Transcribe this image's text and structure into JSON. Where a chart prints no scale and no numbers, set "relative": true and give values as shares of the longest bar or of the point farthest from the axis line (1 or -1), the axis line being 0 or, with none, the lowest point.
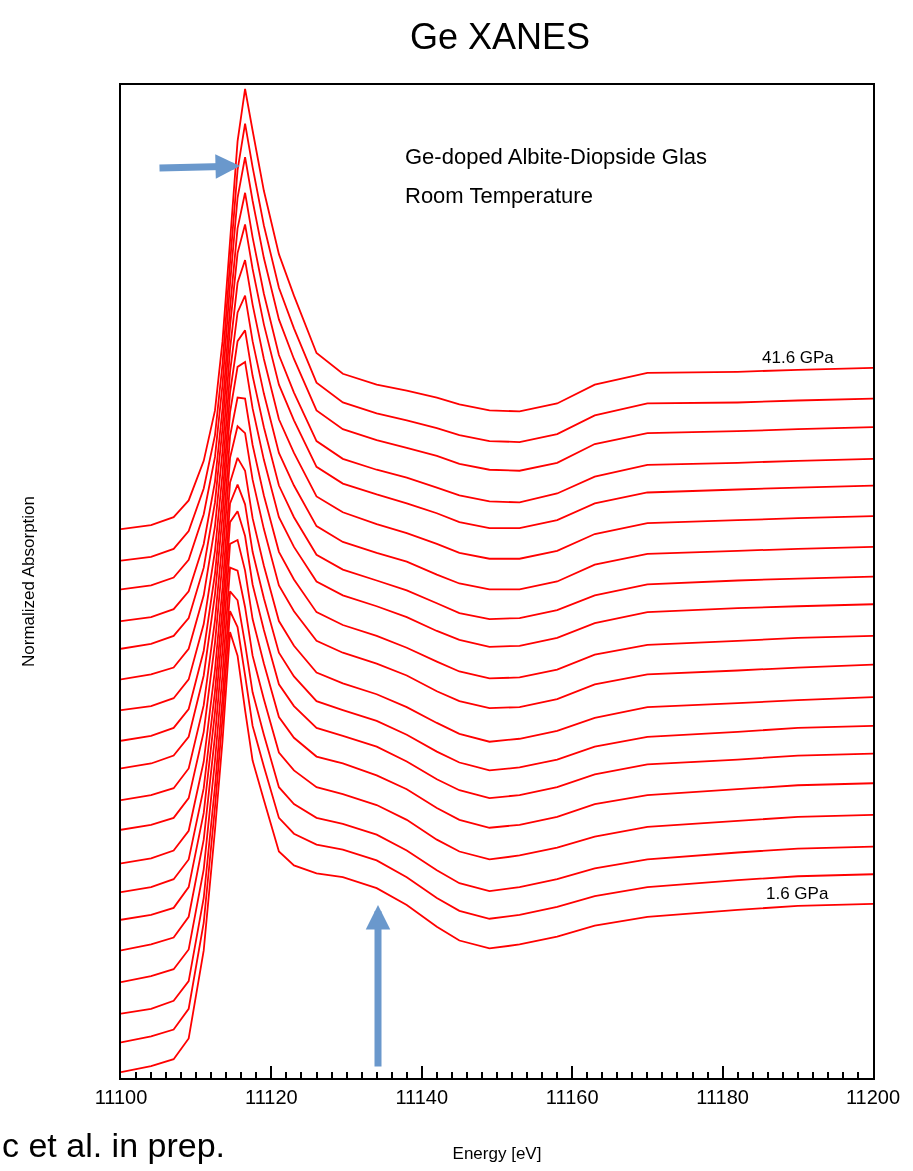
{
  "chart_data": {
    "type": "line",
    "title": "Ge XANES",
    "xlabel": "Energy [eV]",
    "ylabel": "Normalized Absorption",
    "relative": true,
    "x": [
      11100,
      11104,
      11107,
      11109,
      11111,
      11112.5,
      11113.5,
      11114.5,
      11115.5,
      11116.5,
      11117.5,
      11119,
      11121,
      11123,
      11126,
      11129.5,
      11134,
      11138,
      11142,
      11145,
      11149,
      11153,
      11158,
      11163,
      11170,
      11182,
      11190,
      11200
    ],
    "xlim": [
      11100,
      11200
    ],
    "xticks": [
      11100,
      11120,
      11140,
      11160,
      11180,
      11200
    ],
    "legend": false,
    "marker": "none",
    "line_style": "solid",
    "annotations": [
      "Ge-doped Albite-Diopside Glas",
      "Room Temperature",
      "c et al. in prep."
    ],
    "series": [
      {
        "name": "41.6 GPa",
        "color": "#ff0000",
        "values": [
          0.555,
          0.559,
          0.567,
          0.584,
          0.624,
          0.675,
          0.745,
          0.846,
          0.947,
          1.0,
          0.958,
          0.897,
          0.833,
          0.791,
          0.733,
          0.712,
          0.701,
          0.695,
          0.688,
          0.681,
          0.675,
          0.674,
          0.682,
          0.701,
          0.713,
          0.714,
          0.716,
          0.718
        ]
      },
      {
        "color": "#ff0000",
        "values": [
          0.523,
          0.527,
          0.535,
          0.553,
          0.596,
          0.65,
          0.722,
          0.824,
          0.918,
          0.965,
          0.921,
          0.862,
          0.799,
          0.758,
          0.703,
          0.683,
          0.672,
          0.665,
          0.657,
          0.65,
          0.644,
          0.643,
          0.651,
          0.67,
          0.682,
          0.683,
          0.685,
          0.687
        ]
      },
      {
        "color": "#ff0000",
        "values": [
          0.494,
          0.498,
          0.506,
          0.524,
          0.57,
          0.628,
          0.701,
          0.803,
          0.89,
          0.931,
          0.887,
          0.829,
          0.767,
          0.727,
          0.675,
          0.656,
          0.645,
          0.637,
          0.629,
          0.621,
          0.615,
          0.614,
          0.622,
          0.641,
          0.652,
          0.654,
          0.656,
          0.658
        ]
      },
      {
        "color": "#ff0000",
        "values": [
          0.462,
          0.466,
          0.474,
          0.492,
          0.54,
          0.603,
          0.677,
          0.779,
          0.859,
          0.895,
          0.85,
          0.793,
          0.731,
          0.693,
          0.644,
          0.626,
          0.615,
          0.607,
          0.597,
          0.589,
          0.583,
          0.582,
          0.591,
          0.608,
          0.62,
          0.622,
          0.624,
          0.626
        ]
      },
      {
        "color": "#ff0000",
        "values": [
          0.434,
          0.439,
          0.447,
          0.465,
          0.516,
          0.582,
          0.657,
          0.76,
          0.834,
          0.863,
          0.818,
          0.762,
          0.701,
          0.665,
          0.618,
          0.601,
          0.59,
          0.581,
          0.571,
          0.562,
          0.556,
          0.556,
          0.564,
          0.581,
          0.592,
          0.595,
          0.597,
          0.599
        ]
      },
      {
        "color": "#ff0000",
        "values": [
          0.403,
          0.408,
          0.415,
          0.434,
          0.488,
          0.558,
          0.634,
          0.737,
          0.804,
          0.827,
          0.782,
          0.727,
          0.666,
          0.632,
          0.588,
          0.572,
          0.56,
          0.551,
          0.54,
          0.531,
          0.525,
          0.525,
          0.533,
          0.55,
          0.561,
          0.564,
          0.566,
          0.568
        ]
      },
      {
        "color": "#ff0000",
        "values": [
          0.372,
          0.376,
          0.384,
          0.403,
          0.459,
          0.533,
          0.611,
          0.714,
          0.774,
          0.791,
          0.745,
          0.692,
          0.632,
          0.599,
          0.558,
          0.542,
          0.531,
          0.522,
          0.509,
          0.5,
          0.494,
          0.494,
          0.502,
          0.519,
          0.53,
          0.533,
          0.535,
          0.537
        ]
      },
      {
        "color": "#ff0000",
        "values": [
          0.341,
          0.346,
          0.354,
          0.373,
          0.432,
          0.51,
          0.588,
          0.693,
          0.745,
          0.756,
          0.71,
          0.658,
          0.599,
          0.567,
          0.529,
          0.514,
          0.503,
          0.493,
          0.48,
          0.47,
          0.464,
          0.465,
          0.473,
          0.488,
          0.499,
          0.503,
          0.505,
          0.507
        ]
      },
      {
        "color": "#ff0000",
        "values": [
          0.313,
          0.318,
          0.326,
          0.345,
          0.407,
          0.489,
          0.568,
          0.673,
          0.719,
          0.724,
          0.677,
          0.625,
          0.567,
          0.537,
          0.502,
          0.488,
          0.477,
          0.466,
          0.452,
          0.443,
          0.436,
          0.437,
          0.445,
          0.46,
          0.471,
          0.475,
          0.477,
          0.479
        ]
      },
      {
        "color": "#ff0000",
        "values": [
          0.281,
          0.286,
          0.293,
          0.313,
          0.377,
          0.463,
          0.544,
          0.649,
          0.688,
          0.687,
          0.64,
          0.589,
          0.532,
          0.504,
          0.471,
          0.458,
          0.447,
          0.435,
          0.421,
          0.411,
          0.404,
          0.405,
          0.413,
          0.428,
          0.438,
          0.442,
          0.445,
          0.447
        ]
      },
      {
        "color": "#ff0000",
        "values": [
          0.251,
          0.256,
          0.263,
          0.283,
          0.35,
          0.44,
          0.522,
          0.627,
          0.659,
          0.652,
          0.605,
          0.555,
          0.498,
          0.472,
          0.442,
          0.43,
          0.419,
          0.407,
          0.391,
          0.381,
          0.374,
          0.375,
          0.383,
          0.398,
          0.408,
          0.412,
          0.415,
          0.418
        ]
      },
      {
        "color": "#ff0000",
        "values": [
          0.217,
          0.222,
          0.23,
          0.25,
          0.32,
          0.413,
          0.496,
          0.602,
          0.627,
          0.614,
          0.566,
          0.518,
          0.462,
          0.437,
          0.41,
          0.399,
          0.388,
          0.375,
          0.359,
          0.348,
          0.34,
          0.343,
          0.351,
          0.364,
          0.375,
          0.379,
          0.382,
          0.385
        ]
      },
      {
        "color": "#ff0000",
        "values": [
          0.188,
          0.193,
          0.201,
          0.221,
          0.293,
          0.391,
          0.475,
          0.581,
          0.6,
          0.58,
          0.532,
          0.485,
          0.43,
          0.406,
          0.381,
          0.372,
          0.361,
          0.347,
          0.33,
          0.319,
          0.311,
          0.314,
          0.322,
          0.335,
          0.345,
          0.35,
          0.354,
          0.356
        ]
      },
      {
        "color": "#ff0000",
        "values": [
          0.16,
          0.165,
          0.172,
          0.193,
          0.268,
          0.37,
          0.455,
          0.562,
          0.573,
          0.548,
          0.499,
          0.453,
          0.398,
          0.376,
          0.354,
          0.346,
          0.335,
          0.32,
          0.302,
          0.291,
          0.283,
          0.286,
          0.294,
          0.307,
          0.317,
          0.322,
          0.326,
          0.328
        ]
      },
      {
        "color": "#ff0000",
        "values": [
          0.129,
          0.135,
          0.142,
          0.163,
          0.241,
          0.346,
          0.433,
          0.54,
          0.544,
          0.513,
          0.464,
          0.419,
          0.365,
          0.344,
          0.325,
          0.318,
          0.306,
          0.292,
          0.273,
          0.261,
          0.253,
          0.256,
          0.264,
          0.277,
          0.286,
          0.292,
          0.296,
          0.298
        ]
      },
      {
        "color": "#ff0000",
        "values": [
          0.097,
          0.103,
          0.11,
          0.13,
          0.211,
          0.321,
          0.408,
          0.516,
          0.513,
          0.476,
          0.427,
          0.383,
          0.329,
          0.311,
          0.294,
          0.287,
          0.276,
          0.261,
          0.241,
          0.229,
          0.221,
          0.225,
          0.233,
          0.244,
          0.254,
          0.26,
          0.264,
          0.266
        ]
      },
      {
        "color": "#ff0000",
        "values": [
          0.065,
          0.07,
          0.078,
          0.098,
          0.182,
          0.295,
          0.384,
          0.492,
          0.483,
          0.439,
          0.39,
          0.347,
          0.294,
          0.277,
          0.263,
          0.257,
          0.246,
          0.23,
          0.21,
          0.197,
          0.189,
          0.193,
          0.201,
          0.212,
          0.221,
          0.228,
          0.232,
          0.234
        ]
      },
      {
        "color": "#ff0000",
        "values": [
          0.036,
          0.042,
          0.049,
          0.07,
          0.157,
          0.274,
          0.364,
          0.472,
          0.456,
          0.407,
          0.356,
          0.315,
          0.263,
          0.247,
          0.236,
          0.231,
          0.22,
          0.203,
          0.182,
          0.169,
          0.161,
          0.165,
          0.173,
          0.184,
          0.193,
          0.2,
          0.204,
          0.206
        ]
      },
      {
        "name": "1.6 GPa",
        "color": "#ff0000",
        "values": [
          0.006,
          0.012,
          0.019,
          0.04,
          0.129,
          0.251,
          0.341,
          0.451,
          0.427,
          0.372,
          0.321,
          0.281,
          0.229,
          0.215,
          0.207,
          0.203,
          0.192,
          0.175,
          0.153,
          0.139,
          0.131,
          0.135,
          0.143,
          0.154,
          0.163,
          0.17,
          0.174,
          0.176
        ]
      }
    ]
  }
}
